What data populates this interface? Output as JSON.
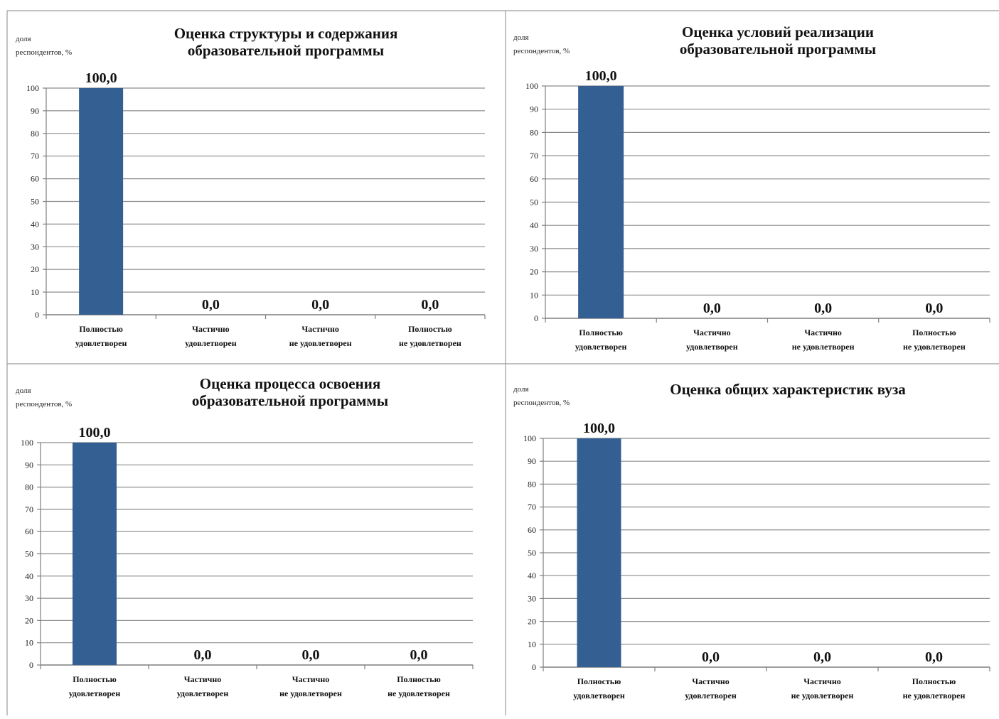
{
  "colors": {
    "bar": "#335f93",
    "grid": "#8c8c8c",
    "axis": "#7f7f7f",
    "border": "#9a9a9a"
  },
  "chart_data": [
    {
      "type": "bar",
      "title": "Оценка структуры и содержания образовательной программы",
      "title_lines": [
        "Оценка структуры и содержания",
        "образовательной программы"
      ],
      "ylabel_lines": [
        "доля",
        "респондентов, %"
      ],
      "categories": [
        [
          "Полностью",
          "удовлетворен"
        ],
        [
          "Частично",
          "удовлетворен"
        ],
        [
          "Частично",
          "не удовлетворен"
        ],
        [
          "Полностью",
          "не удовлетворен"
        ]
      ],
      "values": [
        100.0,
        0.0,
        0.0,
        0.0
      ],
      "value_labels": [
        "100,0",
        "0,0",
        "0,0",
        "0,0"
      ],
      "yticks": [
        "0",
        "10",
        "20",
        "30",
        "40",
        "50",
        "60",
        "70",
        "80",
        "90",
        "100"
      ],
      "ylim": [
        0,
        100
      ],
      "grid": true,
      "legend": "none"
    },
    {
      "type": "bar",
      "title": "Оценка условий реализации образовательной программы",
      "title_lines": [
        "Оценка условий реализации",
        "образовательной программы"
      ],
      "ylabel_lines": [
        "доля",
        "респондентов, %"
      ],
      "categories": [
        [
          "Полностью",
          "удовлетворен"
        ],
        [
          "Частично",
          "удовлетворен"
        ],
        [
          "Частично",
          "не удовлетворен"
        ],
        [
          "Полностью",
          "не удовлетворен"
        ]
      ],
      "values": [
        100.0,
        0.0,
        0.0,
        0.0
      ],
      "value_labels": [
        "100,0",
        "0,0",
        "0,0",
        "0,0"
      ],
      "yticks": [
        "0",
        "10",
        "20",
        "30",
        "40",
        "50",
        "60",
        "70",
        "80",
        "90",
        "100"
      ],
      "ylim": [
        0,
        100
      ],
      "grid": true,
      "legend": "none"
    },
    {
      "type": "bar",
      "title": "Оценка процесса освоения образовательной программы",
      "title_lines": [
        "Оценка процесса освоения",
        "образовательной программы"
      ],
      "ylabel_lines": [
        "доля",
        "респондентов, %"
      ],
      "categories": [
        [
          "Полностью",
          "удовлетворен"
        ],
        [
          "Частично",
          "удовлетворен"
        ],
        [
          "Частично",
          "не удовлетворен"
        ],
        [
          "Полностью",
          "не удовлетворен"
        ]
      ],
      "values": [
        100.0,
        0.0,
        0.0,
        0.0
      ],
      "value_labels": [
        "100,0",
        "0,0",
        "0,0",
        "0,0"
      ],
      "yticks": [
        "0",
        "10",
        "20",
        "30",
        "40",
        "50",
        "60",
        "70",
        "80",
        "90",
        "100"
      ],
      "ylim": [
        0,
        100
      ],
      "grid": true,
      "legend": "none"
    },
    {
      "type": "bar",
      "title": "Оценка общих характеристик вуза",
      "title_lines": [
        "Оценка общих характеристик вуза"
      ],
      "ylabel_lines": [
        "доля",
        "респондентов, %"
      ],
      "categories": [
        [
          "Полностью",
          "удовлетворен"
        ],
        [
          "Частично",
          "удовлетворен"
        ],
        [
          "Частично",
          "не удовлетворен"
        ],
        [
          "Полностью",
          "не удовлетворен"
        ]
      ],
      "values": [
        100.0,
        0.0,
        0.0,
        0.0
      ],
      "value_labels": [
        "100,0",
        "0,0",
        "0,0",
        "0,0"
      ],
      "yticks": [
        "0",
        "10",
        "20",
        "30",
        "40",
        "50",
        "60",
        "70",
        "80",
        "90",
        "100"
      ],
      "ylim": [
        0,
        100
      ],
      "grid": true,
      "legend": "none"
    }
  ]
}
